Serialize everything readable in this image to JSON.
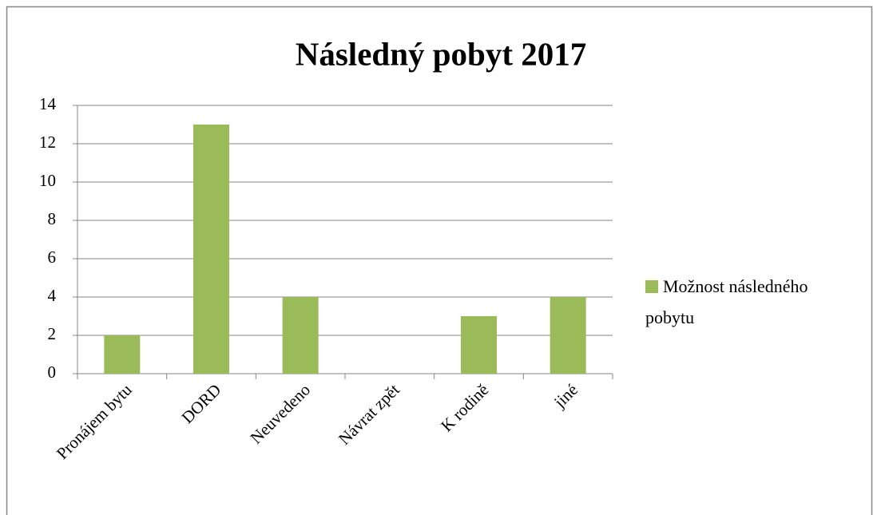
{
  "chart_data": {
    "type": "bar",
    "title": "Následný pobyt 2017",
    "categories": [
      "Pronájem bytu",
      "DORD",
      "Neuvedeno",
      "Návrat zpět",
      "K rodině",
      "jiné"
    ],
    "series": [
      {
        "name": "Možnost následného pobytu",
        "color": "#9bbb59",
        "values": [
          2,
          13,
          4,
          0,
          3,
          4
        ]
      }
    ],
    "ylim": [
      0,
      14
    ],
    "yticks": [
      0,
      2,
      4,
      6,
      8,
      10,
      12,
      14
    ],
    "grid": true,
    "legend": "right"
  }
}
